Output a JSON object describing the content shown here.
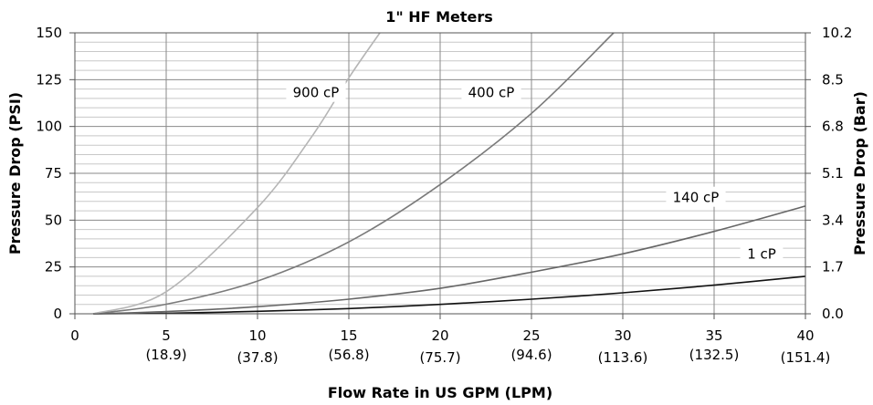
{
  "chart_data": {
    "type": "line",
    "title": "1\" HF Meters",
    "xlabel": "Flow Rate in US GPM (LPM)",
    "ylabel": "Pressure Drop (PSI)",
    "y2label": "Pressure Drop (Bar)",
    "xlim": [
      0,
      40
    ],
    "ylim": [
      0,
      150
    ],
    "x_ticks": [
      0,
      5,
      10,
      15,
      20,
      25,
      30,
      35,
      40
    ],
    "x_secondary_ticks": [
      {
        "x": 5,
        "label": "(18.9)"
      },
      {
        "x": 10,
        "label": "(37.8)"
      },
      {
        "x": 15,
        "label": "(56.8)"
      },
      {
        "x": 20,
        "label": "(75.7)"
      },
      {
        "x": 25,
        "label": "(94.6)"
      },
      {
        "x": 30,
        "label": "(113.6)"
      },
      {
        "x": 35,
        "label": "(132.5)"
      },
      {
        "x": 40,
        "label": "(151.4)"
      }
    ],
    "y_ticks": [
      0,
      25,
      50,
      75,
      100,
      125,
      150
    ],
    "y2_ticks": [
      {
        "y": 0,
        "label": "0.0"
      },
      {
        "y": 25,
        "label": "1.7"
      },
      {
        "y": 50,
        "label": "3.4"
      },
      {
        "y": 75,
        "label": "5.1"
      },
      {
        "y": 100,
        "label": "6.8"
      },
      {
        "y": 125,
        "label": "8.5"
      },
      {
        "y": 150,
        "label": "10.2"
      }
    ],
    "grid": true,
    "series": [
      {
        "name": "1 cP",
        "color": "#111111",
        "points": [
          [
            1,
            0
          ],
          [
            5,
            0.3
          ],
          [
            10,
            1.3
          ],
          [
            15,
            2.8
          ],
          [
            20,
            5
          ],
          [
            25,
            7.8
          ],
          [
            30,
            11.2
          ],
          [
            35,
            15.3
          ],
          [
            40,
            20
          ]
        ]
      },
      {
        "name": "140 cP",
        "color": "#666666",
        "points": [
          [
            1,
            0
          ],
          [
            5,
            1.2
          ],
          [
            10,
            3.8
          ],
          [
            15,
            7.8
          ],
          [
            20,
            13.6
          ],
          [
            25,
            22.2
          ],
          [
            30,
            32
          ],
          [
            35,
            44
          ],
          [
            40,
            57.5
          ]
        ]
      },
      {
        "name": "400 cP",
        "color": "#7a7a7a",
        "points": [
          [
            1,
            0
          ],
          [
            5,
            5.1
          ],
          [
            10,
            17.5
          ],
          [
            15,
            38.4
          ],
          [
            20,
            69
          ],
          [
            25,
            107
          ],
          [
            29.5,
            150
          ]
        ]
      },
      {
        "name": "900 cP",
        "color": "#b5b5b5",
        "points": [
          [
            1,
            0
          ],
          [
            5,
            11.8
          ],
          [
            10,
            56.7
          ],
          [
            13,
            95
          ],
          [
            15,
            126
          ],
          [
            16.7,
            150
          ]
        ]
      }
    ],
    "series_labels": [
      {
        "series": "900 cP",
        "at": [
          13.2,
          118
        ]
      },
      {
        "series": "400 cP",
        "at": [
          22.8,
          118
        ]
      },
      {
        "series": "140 cP",
        "at": [
          34,
          62
        ]
      },
      {
        "series": "1 cP",
        "at": [
          37.6,
          32
        ]
      }
    ]
  }
}
